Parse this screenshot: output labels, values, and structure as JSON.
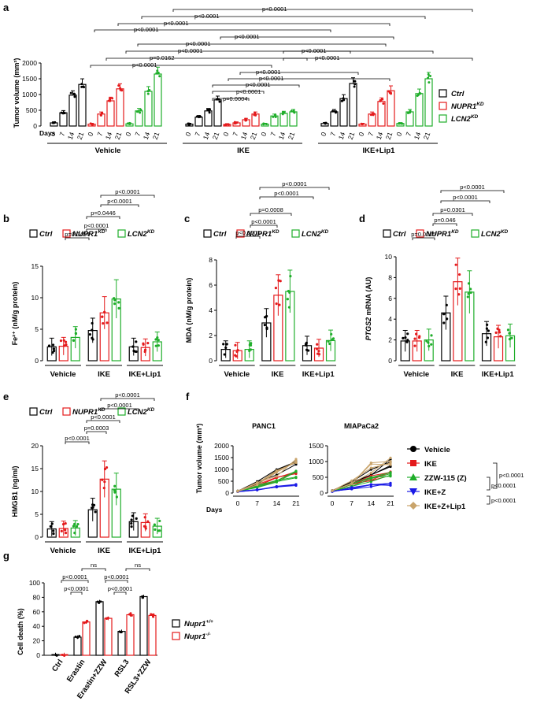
{
  "colors": {
    "ctrl": "#000000",
    "nupr1": "#e41a1c",
    "lcn2": "#1fae2a",
    "vehicle": "#000000",
    "ike": "#e41a1c",
    "zzw": "#1fae2a",
    "ikez": "#1a1ae6",
    "ikezlip1": "#c9a46b"
  },
  "chart_data": [
    {
      "panel": "a",
      "type": "bar",
      "ylabel": "Tumor volume (mm³)",
      "ylim": [
        0,
        2000
      ],
      "yticks": [
        "0",
        "500",
        "1000",
        "1500",
        "2000"
      ],
      "xaxis_label": "Days",
      "days": [
        "0",
        "7",
        "14",
        "21"
      ],
      "groups": [
        "Vehicle",
        "IKE",
        "IKE+Lip1"
      ],
      "legend": [
        "Ctrl",
        "NUPR1KD",
        "LCN2KD"
      ],
      "series": [
        {
          "name": "Ctrl",
          "values": [
            [
              100,
              420,
              980,
              1320
            ],
            [
              60,
              280,
              480,
              830
            ],
            [
              80,
              450,
              870,
              1350
            ]
          ]
        },
        {
          "name": "NUPR1KD",
          "values": [
            [
              60,
              380,
              800,
              1180
            ],
            [
              50,
              100,
              200,
              380
            ],
            [
              60,
              380,
              780,
              1120
            ]
          ]
        },
        {
          "name": "LCN2KD",
          "values": [
            [
              70,
              480,
              1100,
              1650
            ],
            [
              60,
              320,
              400,
              450
            ],
            [
              80,
              450,
              1030,
              1500
            ]
          ]
        }
      ],
      "pvalues": [
        "p<0.0001",
        "p<0.0001",
        "p<0.0001",
        "p<0.0001",
        "p<0.0001",
        "p<0.0001",
        "p<0.0001",
        "p=0.0162",
        "p<0.0001",
        "p<0.0001",
        "p<0.0001",
        "p<0.0001",
        "p<0.0001",
        "p<0.0001",
        "p<0.0001",
        "p=0.0004"
      ]
    },
    {
      "panel": "b",
      "type": "bar",
      "ylabel": "Fe²⁺ (nM/g protein)",
      "ylim": [
        0,
        15
      ],
      "yticks": [
        "0",
        "5",
        "10",
        "15"
      ],
      "groups": [
        "Vehicle",
        "IKE",
        "IKE+Lip1"
      ],
      "legend": [
        "Ctrl",
        "NUPR1KD",
        "LCN2KD"
      ],
      "series": [
        {
          "name": "Ctrl",
          "values": [
            2.2,
            4.8,
            2.2
          ]
        },
        {
          "name": "NUPR1KD",
          "values": [
            2.3,
            7.6,
            2.1
          ]
        },
        {
          "name": "LCN2KD",
          "values": [
            3.7,
            9.8,
            3.0
          ]
        }
      ],
      "pvalues": [
        "p<0.0001",
        "p<0.0001",
        "p=0.0446",
        "p<0.0001",
        "p=0.0454"
      ]
    },
    {
      "panel": "c",
      "type": "bar",
      "ylabel": "MDA (nM/g protein)",
      "ylim": [
        0,
        8
      ],
      "yticks": [
        "0",
        "2",
        "4",
        "6",
        "8"
      ],
      "groups": [
        "Vehicle",
        "IKE",
        "IKE+Lip1"
      ],
      "legend": [
        "Ctrl",
        "NUPR1KD",
        "LCN2KD"
      ],
      "series": [
        {
          "name": "Ctrl",
          "values": [
            0.9,
            3.0,
            1.2
          ]
        },
        {
          "name": "NUPR1KD",
          "values": [
            0.8,
            5.2,
            1.0
          ]
        },
        {
          "name": "LCN2KD",
          "values": [
            0.9,
            5.5,
            1.6
          ]
        }
      ],
      "pvalues": [
        "p<0.0001",
        "p<0.0001",
        "p=0.0008",
        "p<0.0001",
        "p<0.0001"
      ]
    },
    {
      "panel": "d",
      "type": "bar",
      "ylabel": "PTGS2 mRNA (AU)",
      "ylim": [
        0,
        10
      ],
      "yticks": [
        "0",
        "2",
        "4",
        "6",
        "8",
        "10"
      ],
      "groups": [
        "Vehicle",
        "IKE",
        "IKE+Lip1"
      ],
      "legend": [
        "Ctrl",
        "NUPR1KD",
        "LCN2KD"
      ],
      "series": [
        {
          "name": "Ctrl",
          "values": [
            1.9,
            4.6,
            2.6
          ]
        },
        {
          "name": "NUPR1KD",
          "values": [
            1.9,
            7.6,
            2.3
          ]
        },
        {
          "name": "LCN2KD",
          "values": [
            2.0,
            6.6,
            2.4
          ]
        }
      ],
      "pvalues": [
        "p<0.0001",
        "p<0.0001",
        "p=0.0301",
        "p=0.046",
        "p=0.0005"
      ]
    },
    {
      "panel": "e",
      "type": "bar",
      "ylabel": "HMGB1 (ng/ml)",
      "ylim": [
        0,
        20
      ],
      "yticks": [
        "0",
        "5",
        "10",
        "15",
        "20"
      ],
      "groups": [
        "Vehicle",
        "IKE",
        "IKE+Lip1"
      ],
      "legend": [
        "Ctrl",
        "NUPR1KD",
        "LCN2KD"
      ],
      "series": [
        {
          "name": "Ctrl",
          "values": [
            1.8,
            6.0,
            3.4
          ]
        },
        {
          "name": "NUPR1KD",
          "values": [
            1.9,
            12.7,
            3.2
          ]
        },
        {
          "name": "LCN2KD",
          "values": [
            2.0,
            10.5,
            2.4
          ]
        }
      ],
      "pvalues": [
        "p<0.0001",
        "p<0.0001",
        "p<0.0001",
        "p=0.0003",
        "p<0.0001"
      ]
    },
    {
      "panel": "f",
      "type": "line",
      "ylabel": "Tumor volume (mm³)",
      "xaxis_label": "Days",
      "x": [
        "0",
        "7",
        "14",
        "21"
      ],
      "plots": [
        {
          "title": "PANC1",
          "ylim": [
            0,
            2000
          ],
          "yticks": [
            "0",
            "500",
            "1000",
            "1500",
            "2000"
          ],
          "series": [
            {
              "name": "Vehicle",
              "values": [
                80,
                420,
                870,
                1300
              ]
            },
            {
              "name": "IKE",
              "values": [
                70,
                300,
                580,
                820
              ]
            },
            {
              "name": "ZZW-115 (Z)",
              "values": [
                70,
                290,
                540,
                780
              ]
            },
            {
              "name": "IKE+Z",
              "values": [
                60,
                140,
                240,
                330
              ]
            },
            {
              "name": "IKE+Z+Lip1",
              "values": [
                80,
                400,
                820,
                1200
              ]
            }
          ]
        },
        {
          "title": "MIAPaCa2",
          "ylim": [
            0,
            1500
          ],
          "yticks": [
            "0",
            "500",
            "1000",
            "1500"
          ],
          "series": [
            {
              "name": "Vehicle",
              "values": [
                70,
                320,
                650,
                950
              ]
            },
            {
              "name": "IKE",
              "values": [
                60,
                250,
                480,
                650
              ]
            },
            {
              "name": "ZZW-115 (Z)",
              "values": [
                60,
                240,
                450,
                620
              ]
            },
            {
              "name": "IKE+Z",
              "values": [
                50,
                150,
                230,
                290
              ]
            },
            {
              "name": "IKE+Z+Lip1",
              "values": [
                70,
                350,
                800,
                1100
              ]
            }
          ]
        }
      ],
      "legend": [
        "Vehicle",
        "IKE",
        "ZZW-115 (Z)",
        "IKE+Z",
        "IKE+Z+Lip1"
      ],
      "pvalues": [
        "p<0.0001",
        "p<0.0001",
        "p<0.0001"
      ]
    },
    {
      "panel": "g",
      "type": "bar",
      "ylabel": "Cell death (%)",
      "ylim": [
        0,
        100
      ],
      "yticks": [
        "0",
        "20",
        "40",
        "60",
        "80",
        "100"
      ],
      "categories": [
        "Ctrl",
        "Erastin",
        "Erastin+ZZW",
        "RSL3",
        "RSL3+ZZW"
      ],
      "legend": [
        "Nupr1+/+",
        "Nupr1-/-"
      ],
      "series": [
        {
          "name": "Nupr1+/+",
          "values": [
            1,
            25,
            74,
            33,
            81
          ]
        },
        {
          "name": "Nupr1-/-",
          "values": [
            1,
            46,
            51,
            56,
            55
          ]
        }
      ],
      "pvalues": [
        "ns",
        "p<0.0001",
        "p<0.0001",
        "ns",
        "p<0.0001",
        "p<0.0001"
      ]
    }
  ],
  "text": {
    "panels": [
      "a",
      "b",
      "c",
      "d",
      "e",
      "f",
      "g"
    ],
    "a_ylabel": "Tumor volume (mm³)",
    "a_days": "Days",
    "groups": [
      "Vehicle",
      "IKE",
      "IKE+Lip1"
    ],
    "legend_ctrl": "Ctrl",
    "legend_nupr1": "NUPR1",
    "legend_lcn2": "LCN2",
    "kd": "KD",
    "b_ylabel": "Fe²⁺ (nM/g protein)",
    "c_ylabel": "MDA (nM/g protein)",
    "d_ylabel_it": "PTGS2",
    "d_ylabel": " mRNA (AU)",
    "e_ylabel": "HMGB1 (ng/ml)",
    "f_ylabel": "Tumor volume (mm³)",
    "f_days": "Days",
    "f_title1": "PANC1",
    "f_title2": "MIAPaCa2",
    "g_ylabel": "Cell death (%)",
    "g_leg1": "Nupr1",
    "g_leg1sup": "+/+",
    "g_leg2": "Nupr1",
    "g_leg2sup": "-/-"
  }
}
